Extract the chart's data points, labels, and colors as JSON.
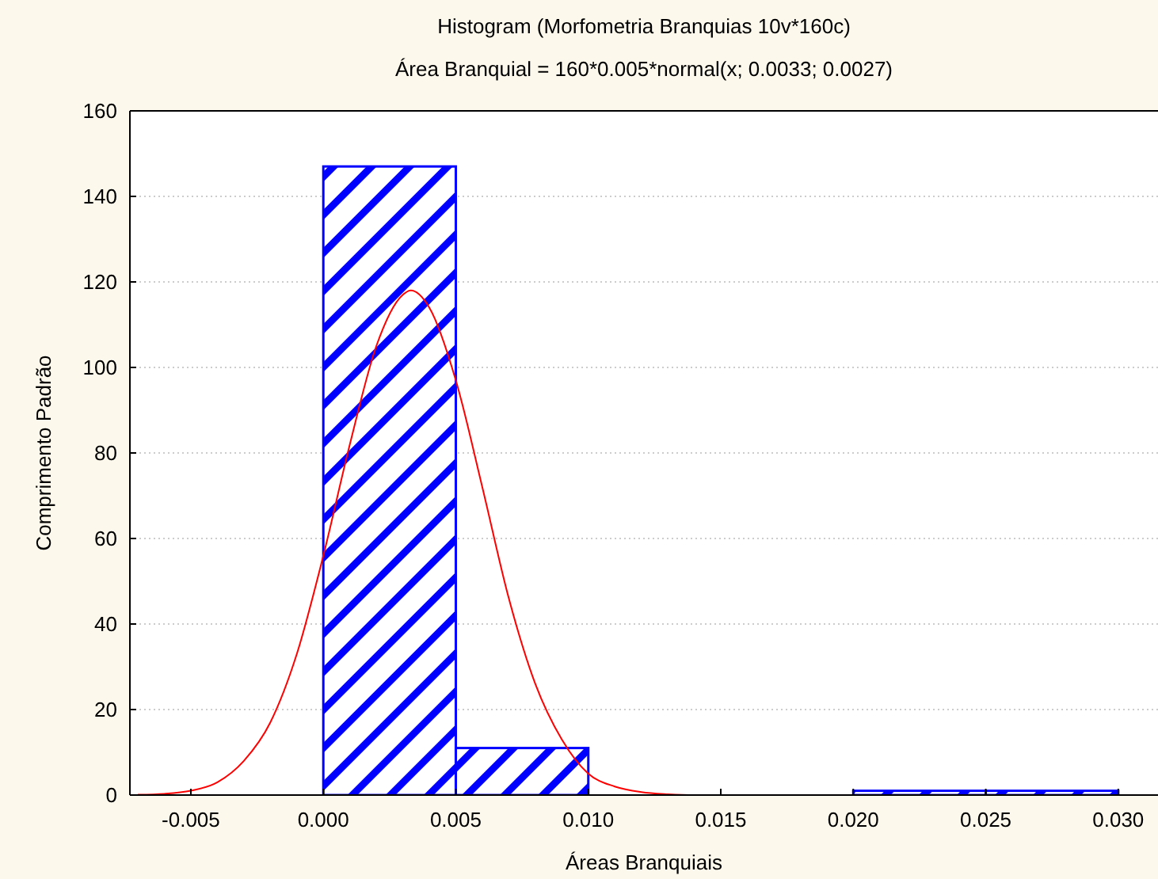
{
  "chart_data": {
    "type": "histogram",
    "title": "Histogram (Morfometria Branquias 10v*160c)",
    "subtitle": "Área Branquial = 160*0.005*normal(x; 0.0033; 0.0027)",
    "xlabel": "Áreas Branquiais",
    "ylabel": "Comprimento Padrão",
    "bins": [
      0,
      0.005,
      0.01,
      0.015,
      0.02,
      0.025,
      0.03
    ],
    "values": [
      147,
      11,
      0,
      0,
      1,
      1
    ],
    "color": "#0000ff",
    "series": [
      {
        "type": "line",
        "color": "#ff0000",
        "x": [
          -0.007,
          -0.006,
          -0.005,
          -0.004,
          -0.003,
          -0.002,
          -0.001,
          0,
          0.001,
          0.002,
          0.003,
          0.0033,
          0.004,
          0.005,
          0.006,
          0.007,
          0.008,
          0.009,
          0.01,
          0.011,
          0.012,
          0.013,
          0.014,
          0.015
        ],
        "values": [
          0.1,
          0.3,
          1,
          3,
          8,
          17,
          33,
          56,
          82,
          105,
          117,
          118,
          114,
          97,
          72,
          46,
          26,
          13,
          5,
          2,
          0.7,
          0.2,
          0,
          0
        ]
      }
    ],
    "xlim": [
      -0.0073,
      0.0315
    ],
    "xticks": [
      {
        "value": -0.005,
        "label": "-0.005"
      },
      {
        "value": 0,
        "label": "0.000"
      },
      {
        "value": 0.005,
        "label": "0.005"
      },
      {
        "value": 0.01,
        "label": "0.010"
      },
      {
        "value": 0.015,
        "label": "0.015"
      },
      {
        "value": 0.02,
        "label": "0.020"
      },
      {
        "value": 0.025,
        "label": "0.025"
      },
      {
        "value": 0.03,
        "label": "0.030"
      }
    ],
    "ylim": [
      0,
      160
    ],
    "yticks": [
      0,
      20,
      40,
      60,
      80,
      100,
      120,
      140,
      160
    ],
    "grid": "y"
  }
}
